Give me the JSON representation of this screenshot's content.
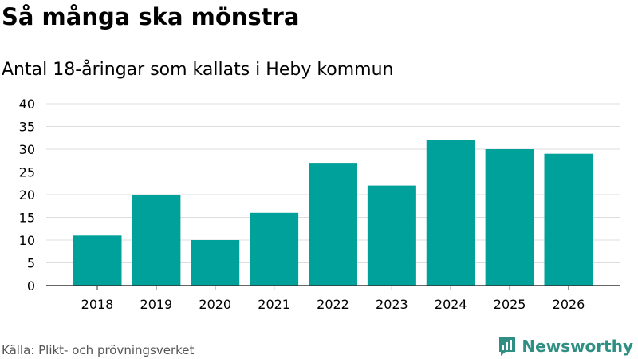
{
  "header": {
    "title": "Så många ska mönstra",
    "subtitle": "Antal 18-åringar som kallats i Heby kommun"
  },
  "footer": {
    "source": "Källa: Plikt- och prövningsverket",
    "brand": "Newsworthy",
    "brand_icon": "newsworthy-logo-icon"
  },
  "colors": {
    "bar": "#00a19a",
    "grid": "#dddddd",
    "axis": "#333333",
    "brand": "#2f8f83"
  },
  "chart_data": {
    "type": "bar",
    "title": "Så många ska mönstra",
    "subtitle": "Antal 18-åringar som kallats i Heby kommun",
    "categories": [
      "2018",
      "2019",
      "2020",
      "2021",
      "2022",
      "2023",
      "2024",
      "2025",
      "2026"
    ],
    "values": [
      11,
      20,
      10,
      16,
      27,
      22,
      32,
      30,
      29
    ],
    "ylim": [
      0,
      40
    ],
    "yticks": [
      0,
      5,
      10,
      15,
      20,
      25,
      30,
      35,
      40
    ],
    "grid": true,
    "legend": "none"
  }
}
